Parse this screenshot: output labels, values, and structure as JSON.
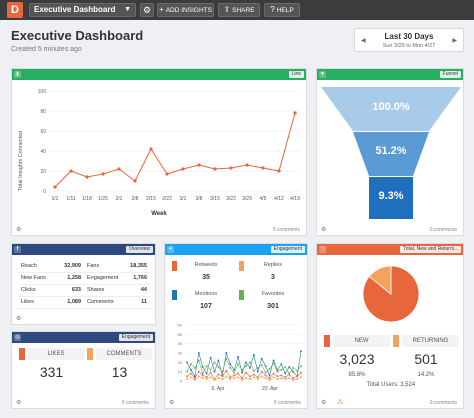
{
  "topbar": {
    "logo_letter": "D",
    "dashboard_select": "Executive Dashboard",
    "add_insights": "ADD INSIGHTS",
    "share": "SHARE",
    "help": "HELP"
  },
  "header": {
    "title": "Executive Dashboard",
    "subtitle": "Created 5 minutes ago"
  },
  "daterange": {
    "title": "Last 30 Days",
    "range": "Sun 3/29 to Mon 4/27"
  },
  "widgets": {
    "line": {
      "tag": "Line",
      "comments": "0 comments"
    },
    "funnel": {
      "tag": "Funnel",
      "comments": "0 comments",
      "stages": [
        "100.0%",
        "51.2%",
        "9.3%"
      ]
    },
    "facebook": {
      "tag": "Overview",
      "rows": [
        [
          "Reach",
          "32,909",
          "Fans",
          "18,355"
        ],
        [
          "New Fans",
          "1,258",
          "Engagement",
          "1,766"
        ],
        [
          "Clicks",
          "633",
          "Shares",
          "44"
        ],
        [
          "Likes",
          "1,089",
          "Comments",
          "11"
        ]
      ]
    },
    "instagram": {
      "tag": "Engagement",
      "comments": "0 comments",
      "likes_label": "LIKES",
      "likes_value": "331",
      "comments_label": "COMMENTS",
      "comments_value": "13"
    },
    "twitter": {
      "tag": "Engagement",
      "comments": "0 comments",
      "stats": [
        {
          "label": "Retweets",
          "value": "35",
          "color": "#e8663c"
        },
        {
          "label": "Replies",
          "value": "3",
          "color": "#f5a25d"
        },
        {
          "label": "Mentions",
          "value": "107",
          "color": "#1f78b4"
        },
        {
          "label": "Favorites",
          "value": "301",
          "color": "#6ab04c"
        }
      ]
    },
    "pie": {
      "tag": "Total, New and Returni...",
      "comments": "0 comments",
      "new_label": "NEW",
      "new_value": "3,023",
      "new_pct": "85.8%",
      "ret_label": "RETURNING",
      "ret_value": "501",
      "ret_pct": "14.2%",
      "total": "Total Users: 3,524"
    }
  },
  "chart_data": [
    {
      "type": "line",
      "title": "",
      "xlabel": "Week",
      "ylabel": "Total Insights Connected",
      "categories": [
        "1/1",
        "1/11",
        "1/18",
        "1/25",
        "2/1",
        "2/8",
        "2/15",
        "2/22",
        "3/1",
        "3/8",
        "3/15",
        "3/22",
        "3/29",
        "4/5",
        "4/12",
        "4/19"
      ],
      "series": [
        {
          "values": [
            4,
            20,
            14,
            17,
            22,
            10,
            42,
            17,
            22,
            26,
            22,
            23,
            26,
            23,
            20,
            78
          ]
        }
      ],
      "yticks": [
        0,
        20,
        40,
        60,
        80,
        100
      ],
      "ylim": [
        0,
        100
      ],
      "color": "#e8663c",
      "grid": true
    },
    {
      "type": "pie",
      "categories": [
        "NEW",
        "RETURNING"
      ],
      "values": [
        85.8,
        14.2
      ],
      "colors": [
        "#e8663c",
        "#f5a25d"
      ]
    },
    {
      "type": "line",
      "xtick_labels": [
        "6. Apr",
        "20. Apr"
      ],
      "yticks": [
        0,
        10,
        20,
        30,
        40,
        50,
        60
      ],
      "ylim": [
        0,
        60
      ],
      "series": [
        {
          "color": "#1f78b4",
          "values": [
            20,
            12,
            5,
            30,
            15,
            8,
            25,
            10,
            22,
            6,
            30,
            18,
            12,
            26,
            9,
            20,
            14,
            28,
            10,
            24,
            16,
            6,
            22,
            12,
            18,
            8,
            15,
            10,
            5,
            32
          ]
        },
        {
          "color": "#e8663c",
          "values": [
            5,
            8,
            3,
            10,
            6,
            4,
            9,
            2,
            7,
            5,
            11,
            4,
            6,
            8,
            3,
            9,
            5,
            7,
            4,
            10,
            6,
            3,
            8,
            5,
            6,
            4,
            7,
            3,
            5,
            9
          ]
        },
        {
          "color": "#6ab04c",
          "values": [
            10,
            18,
            14,
            22,
            8,
            16,
            12,
            20,
            15,
            10,
            24,
            14,
            9,
            18,
            12,
            16,
            20,
            11,
            14,
            17,
            9,
            13,
            19,
            10,
            12,
            15,
            8,
            14,
            11,
            16
          ]
        },
        {
          "color": "#f5a25d",
          "values": [
            2,
            4,
            1,
            5,
            3,
            2,
            4,
            1,
            3,
            2,
            5,
            2,
            3,
            4,
            1,
            3,
            2,
            4,
            2,
            5,
            3,
            1,
            4,
            2,
            3,
            2,
            3,
            1,
            2,
            4
          ]
        }
      ]
    }
  ]
}
